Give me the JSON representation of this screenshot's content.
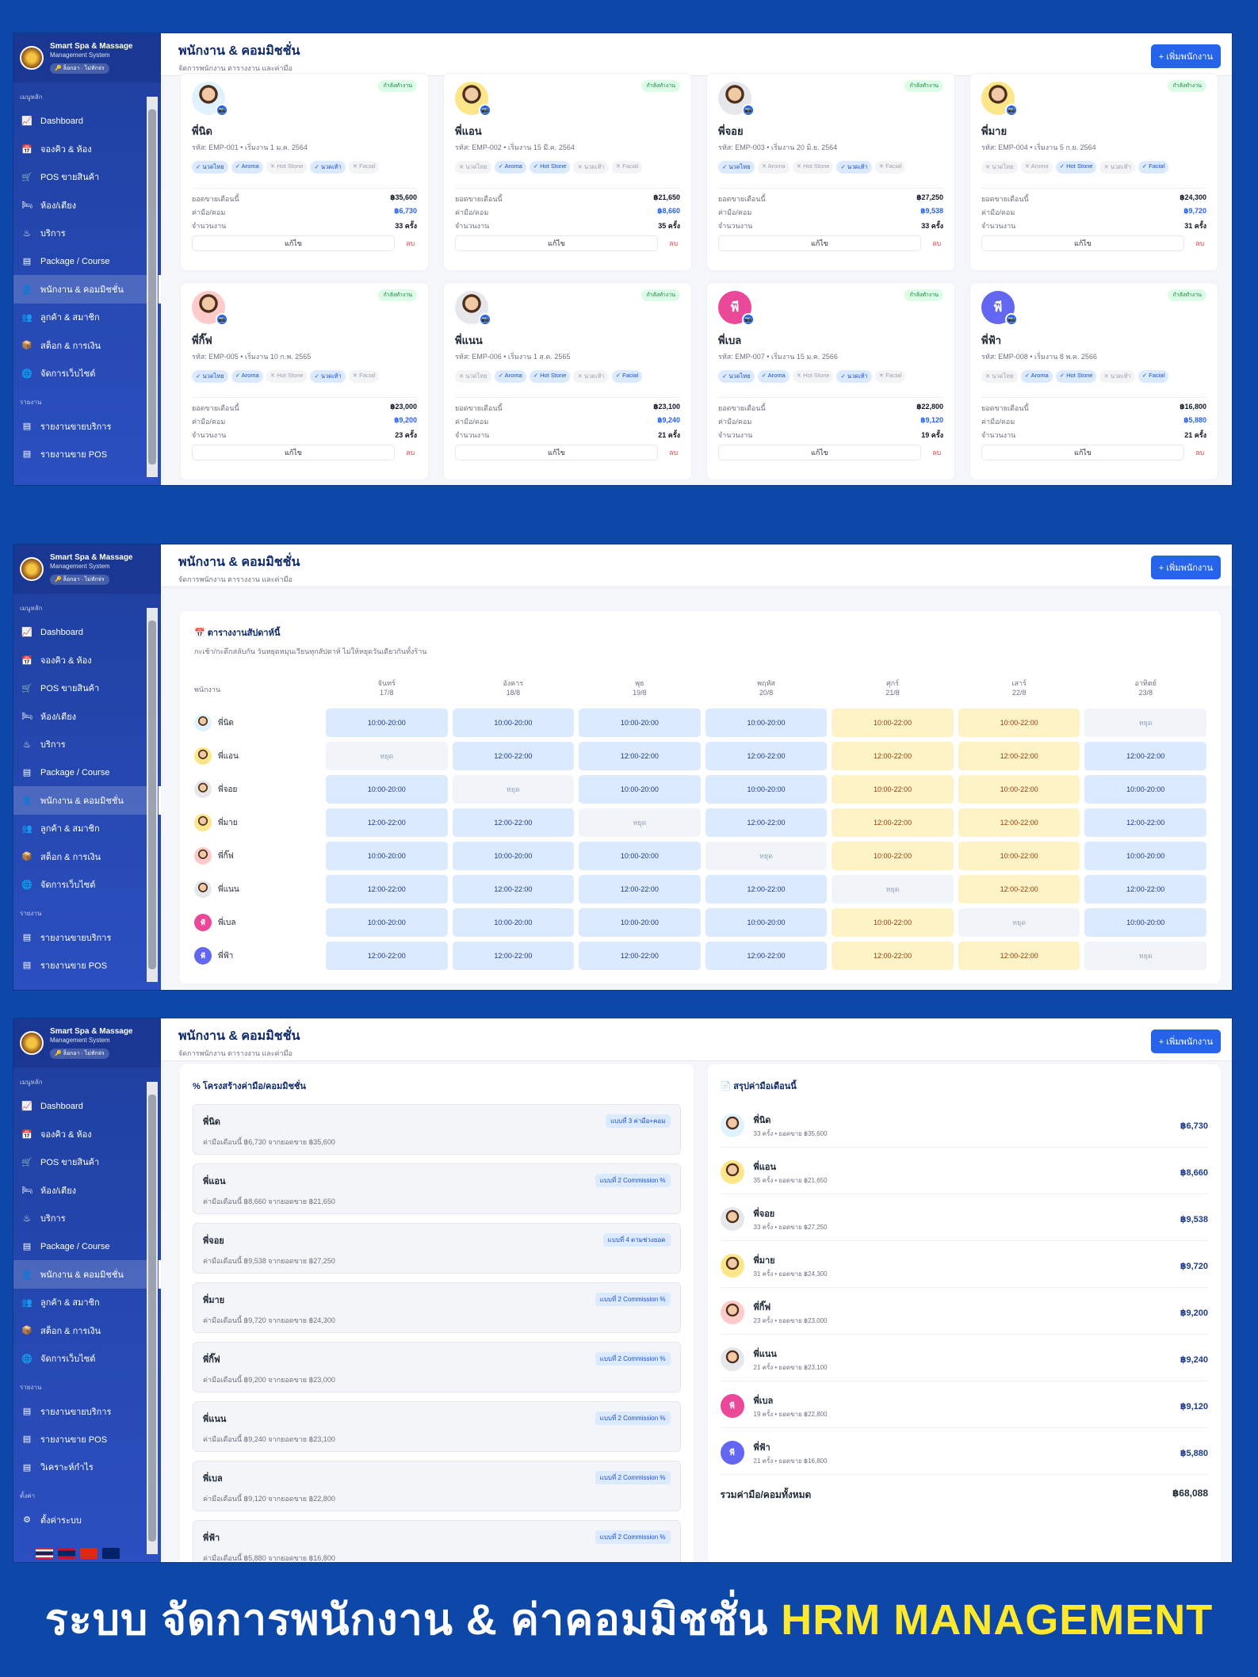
{
  "app": {
    "name": "Smart Spa & Massage",
    "subtitle": "Management System",
    "badge": "🔑 ล็อกอา · ไม่ทักจ่ร"
  },
  "menu": {
    "section_main": "เมนูหลัก",
    "items": [
      "Dashboard",
      "จองคิว & ห้อง",
      "POS ขายสินค้า",
      "ห้อง/เตียง",
      "บริการ",
      "Package / Course",
      "พนักงาน & คอมมิชชั่น",
      "ลูกค้า & สมาชิก",
      "สต็อก & การเงิน",
      "จัดการเว็บไซต์"
    ],
    "section_reports": "รายงาน",
    "reports": [
      "รายงานขายบริการ",
      "รายงานขาย POS",
      "วิเคราะห์กำไร"
    ],
    "section_settings": "ตั้งค่า",
    "settings": [
      "ตั้งค่าระบบ"
    ]
  },
  "header": {
    "title": "พนักงาน & คอมมิชชั่น",
    "subtitle": "จัดการพนักงาน ตารางงาน และค่ามือ",
    "add_button": "+ เพิ่มพนักงาน"
  },
  "labels": {
    "status": "กำลังทำงาน",
    "sales": "ยอดขายเดือนนี้",
    "commission": "ค่ามือ/คอม",
    "jobs": "จำนวนงาน",
    "edit": "แก้ไข",
    "delete": "ลบ"
  },
  "employees": [
    {
      "name": "พี่นิด",
      "code": "รหัส: EMP-001 • เริ่มงาน 1 ม.ค. 2564",
      "sales": "฿35,600",
      "comm": "฿6,730",
      "jobs": "33 ครั้ง",
      "avatar": "photo",
      "initial": "",
      "color": "#e0f2fe",
      "tags": [
        {
          "t": "✓ นวดไทย",
          "on": true
        },
        {
          "t": "✓ Aroma",
          "on": true
        },
        {
          "t": "✕ Hot Stone",
          "on": false
        },
        {
          "t": "✓ นวดเท้า",
          "on": true
        },
        {
          "t": "✕ Facial",
          "on": false
        }
      ]
    },
    {
      "name": "พี่แอน",
      "code": "รหัส: EMP-002 • เริ่มงาน 15 มี.ค. 2564",
      "sales": "฿21,650",
      "comm": "฿8,660",
      "jobs": "35 ครั้ง",
      "avatar": "photo",
      "initial": "",
      "color": "#fde68a",
      "tags": [
        {
          "t": "✕ นวดไทย",
          "on": false
        },
        {
          "t": "✓ Aroma",
          "on": true
        },
        {
          "t": "✓ Hot Stone",
          "on": true
        },
        {
          "t": "✕ นวดเท้า",
          "on": false
        },
        {
          "t": "✕ Facial",
          "on": false
        }
      ]
    },
    {
      "name": "พี่จอย",
      "code": "รหัส: EMP-003 • เริ่มงาน 20 มิ.ย. 2564",
      "sales": "฿27,250",
      "comm": "฿9,538",
      "jobs": "33 ครั้ง",
      "avatar": "photo",
      "initial": "",
      "color": "#e5e7eb",
      "tags": [
        {
          "t": "✓ นวดไทย",
          "on": true
        },
        {
          "t": "✕ Aroma",
          "on": false
        },
        {
          "t": "✕ Hot Stone",
          "on": false
        },
        {
          "t": "✓ นวดเท้า",
          "on": true
        },
        {
          "t": "✕ Facial",
          "on": false
        }
      ]
    },
    {
      "name": "พี่มาย",
      "code": "รหัส: EMP-004 • เริ่มงาน 5 ก.ย. 2564",
      "sales": "฿24,300",
      "comm": "฿9,720",
      "jobs": "31 ครั้ง",
      "avatar": "photo",
      "initial": "",
      "color": "#fde68a",
      "tags": [
        {
          "t": "✕ นวดไทย",
          "on": false
        },
        {
          "t": "✕ Aroma",
          "on": false
        },
        {
          "t": "✓ Hot Stone",
          "on": true
        },
        {
          "t": "✕ นวดเท้า",
          "on": false
        },
        {
          "t": "✓ Facial",
          "on": true
        }
      ]
    },
    {
      "name": "พี่กิ๊ฟ",
      "code": "รหัส: EMP-005 • เริ่มงาน 10 ก.พ. 2565",
      "sales": "฿23,000",
      "comm": "฿9,200",
      "jobs": "23 ครั้ง",
      "avatar": "photo",
      "initial": "",
      "color": "#fecaca",
      "tags": [
        {
          "t": "✓ นวดไทย",
          "on": true
        },
        {
          "t": "✓ Aroma",
          "on": true
        },
        {
          "t": "✕ Hot Stone",
          "on": false
        },
        {
          "t": "✓ นวดเท้า",
          "on": true
        },
        {
          "t": "✕ Facial",
          "on": false
        }
      ]
    },
    {
      "name": "พี่แนน",
      "code": "รหัส: EMP-006 • เริ่มงาน 1 ส.ค. 2565",
      "sales": "฿23,100",
      "comm": "฿9,240",
      "jobs": "21 ครั้ง",
      "avatar": "photo",
      "initial": "",
      "color": "#e5e7eb",
      "tags": [
        {
          "t": "✕ นวดไทย",
          "on": false
        },
        {
          "t": "✓ Aroma",
          "on": true
        },
        {
          "t": "✓ Hot Stone",
          "on": true
        },
        {
          "t": "✕ นวดเท้า",
          "on": false
        },
        {
          "t": "✓ Facial",
          "on": true
        }
      ]
    },
    {
      "name": "พี่เบล",
      "code": "รหัส: EMP-007 • เริ่มงาน 15 ม.ค. 2566",
      "sales": "฿22,800",
      "comm": "฿9,120",
      "jobs": "19 ครั้ง",
      "avatar": "initial",
      "initial": "พี",
      "color": "#ec4899",
      "tags": [
        {
          "t": "✓ นวดไทย",
          "on": true
        },
        {
          "t": "✓ Aroma",
          "on": true
        },
        {
          "t": "✕ Hot Stone",
          "on": false
        },
        {
          "t": "✓ นวดเท้า",
          "on": true
        },
        {
          "t": "✕ Facial",
          "on": false
        }
      ]
    },
    {
      "name": "พี่ฟ้า",
      "code": "รหัส: EMP-008 • เริ่มงาน 8 พ.ค. 2566",
      "sales": "฿16,800",
      "comm": "฿5,880",
      "jobs": "21 ครั้ง",
      "avatar": "initial",
      "initial": "พี",
      "color": "#6366f1",
      "tags": [
        {
          "t": "✕ นวดไทย",
          "on": false
        },
        {
          "t": "✓ Aroma",
          "on": true
        },
        {
          "t": "✓ Hot Stone",
          "on": true
        },
        {
          "t": "✕ นวดเท้า",
          "on": false
        },
        {
          "t": "✓ Facial",
          "on": true
        }
      ]
    }
  ],
  "schedule": {
    "title": "📅 ตารางงานสัปดาห์นี้",
    "subtitle": "กะเช้า/กะดึกสลับกัน วันหยุดหมุนเวียนทุกสัปดาห์ ไม่ให้หยุดวันเดียวกันทั้งร้าน",
    "col_employee": "พนักงาน",
    "days": [
      {
        "d": "จันทร์",
        "date": "17/8"
      },
      {
        "d": "อังคาร",
        "date": "18/8"
      },
      {
        "d": "พุธ",
        "date": "19/8"
      },
      {
        "d": "พฤหัส",
        "date": "20/8"
      },
      {
        "d": "ศุกร์",
        "date": "21/8"
      },
      {
        "d": "เสาร์",
        "date": "22/8"
      },
      {
        "d": "อาทิตย์",
        "date": "23/8"
      }
    ],
    "rows": [
      [
        "10:00-20:00",
        "10:00-20:00",
        "10:00-20:00",
        "10:00-20:00",
        "10:00-22:00",
        "10:00-22:00",
        "หยุด"
      ],
      [
        "หยุด",
        "12:00-22:00",
        "12:00-22:00",
        "12:00-22:00",
        "12:00-22:00",
        "12:00-22:00",
        "12:00-22:00"
      ],
      [
        "10:00-20:00",
        "หยุด",
        "10:00-20:00",
        "10:00-20:00",
        "10:00-22:00",
        "10:00-22:00",
        "10:00-20:00"
      ],
      [
        "12:00-22:00",
        "12:00-22:00",
        "หยุด",
        "12:00-22:00",
        "12:00-22:00",
        "12:00-22:00",
        "12:00-22:00"
      ],
      [
        "10:00-20:00",
        "10:00-20:00",
        "10:00-20:00",
        "หยุด",
        "10:00-22:00",
        "10:00-22:00",
        "10:00-20:00"
      ],
      [
        "12:00-22:00",
        "12:00-22:00",
        "12:00-22:00",
        "12:00-22:00",
        "หยุด",
        "12:00-22:00",
        "12:00-22:00"
      ],
      [
        "10:00-20:00",
        "10:00-20:00",
        "10:00-20:00",
        "10:00-20:00",
        "10:00-22:00",
        "หยุด",
        "10:00-20:00"
      ],
      [
        "12:00-22:00",
        "12:00-22:00",
        "12:00-22:00",
        "12:00-22:00",
        "12:00-22:00",
        "12:00-22:00",
        "หยุด"
      ]
    ]
  },
  "commission_structure": {
    "title": "% โครงสร้างค่ามือ/คอมมิชชั่น",
    "items": [
      {
        "name": "พี่นิด",
        "desc": "ค่ามือเดือนนี้ ฿6,730 จากยอดขาย ฿35,600",
        "type": "แบบที่ 3 ค่ามือ+คอม"
      },
      {
        "name": "พี่แอน",
        "desc": "ค่ามือเดือนนี้ ฿8,660 จากยอดขาย ฿21,650",
        "type": "แบบที่ 2 Commission %"
      },
      {
        "name": "พี่จอย",
        "desc": "ค่ามือเดือนนี้ ฿9,538 จากยอดขาย ฿27,250",
        "type": "แบบที่ 4 ตามช่วงยอด"
      },
      {
        "name": "พี่มาย",
        "desc": "ค่ามือเดือนนี้ ฿9,720 จากยอดขาย ฿24,300",
        "type": "แบบที่ 2 Commission %"
      },
      {
        "name": "พี่กิ๊ฟ",
        "desc": "ค่ามือเดือนนี้ ฿9,200 จากยอดขาย ฿23,000",
        "type": "แบบที่ 2 Commission %"
      },
      {
        "name": "พี่แนน",
        "desc": "ค่ามือเดือนนี้ ฿9,240 จากยอดขาย ฿23,100",
        "type": "แบบที่ 2 Commission %"
      },
      {
        "name": "พี่เบล",
        "desc": "ค่ามือเดือนนี้ ฿9,120 จากยอดขาย ฿22,800",
        "type": "แบบที่ 2 Commission %"
      },
      {
        "name": "พี่ฟ้า",
        "desc": "ค่ามือเดือนนี้ ฿5,880 จากยอดขาย ฿16,800",
        "type": "แบบที่ 2 Commission %"
      }
    ]
  },
  "summary": {
    "title": "📄 สรุปค่ามือเดือนนี้",
    "items": [
      {
        "name": "พี่นิด",
        "meta": "33 ครั้ง • ยอดขาย ฿35,600",
        "amt": "฿6,730"
      },
      {
        "name": "พี่แอน",
        "meta": "35 ครั้ง • ยอดขาย ฿21,650",
        "amt": "฿8,660"
      },
      {
        "name": "พี่จอย",
        "meta": "33 ครั้ง • ยอดขาย ฿27,250",
        "amt": "฿9,538"
      },
      {
        "name": "พี่มาย",
        "meta": "31 ครั้ง • ยอดขาย ฿24,300",
        "amt": "฿9,720"
      },
      {
        "name": "พี่กิ๊ฟ",
        "meta": "23 ครั้ง • ยอดขาย ฿23,000",
        "amt": "฿9,200"
      },
      {
        "name": "พี่แนน",
        "meta": "21 ครั้ง • ยอดขาย ฿23,100",
        "amt": "฿9,240"
      },
      {
        "name": "พี่เบล",
        "meta": "19 ครั้ง • ยอดขาย ฿22,800",
        "amt": "฿9,120"
      },
      {
        "name": "พี่ฟ้า",
        "meta": "21 ครั้ง • ยอดขาย ฿16,800",
        "amt": "฿5,880"
      }
    ],
    "total_label": "รวมค่ามือ/คอมทั้งหมด",
    "total": "฿68,088"
  },
  "banner": {
    "text": "ระบบ จัดการพนักงาน & ค่าคอมมิชชั่น",
    "highlight": "HRM MANAGEMENT"
  },
  "colors": {
    "brand_blue": "#0d47a8",
    "accent": "#2563eb",
    "late_shift": "#fef3c7",
    "day_shift": "#dbeafe"
  }
}
